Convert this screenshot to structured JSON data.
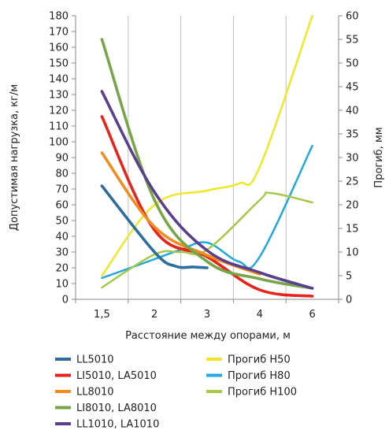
{
  "chart_data": {
    "type": "line",
    "x": [
      "1,5",
      "2",
      "3",
      "4",
      "6"
    ],
    "x_values": [
      1.5,
      2,
      3,
      4,
      6
    ],
    "xlabel": "Расстояние между опорами, м",
    "ylabel_left": "Допустимая нагрузка, кг/м",
    "ylabel_right": "Прогиб, мм",
    "ylim_left": [
      0,
      180
    ],
    "ylim_right": [
      0,
      60
    ],
    "yticks_left": [
      0,
      10,
      20,
      30,
      40,
      50,
      60,
      70,
      80,
      90,
      100,
      110,
      120,
      130,
      140,
      150,
      160,
      170,
      180
    ],
    "yticks_right": [
      0,
      5,
      10,
      15,
      20,
      25,
      30,
      35,
      40,
      45,
      50,
      55,
      60
    ],
    "xticks": [
      "1,5",
      "2",
      "3",
      "4",
      "6"
    ],
    "grid": "vertical",
    "legend_position": "bottom",
    "series": [
      {
        "name": "LL5010",
        "axis": "left",
        "color": "#2e6e9e",
        "points": [
          [
            1.5,
            72
          ],
          [
            2,
            30
          ],
          [
            2.4,
            21
          ],
          [
            2.75,
            20.5
          ],
          [
            3,
            20
          ]
        ]
      },
      {
        "name": "LI5010, LA5010",
        "axis": "left",
        "color": "#e8231c",
        "points": [
          [
            1.5,
            116
          ],
          [
            2,
            44
          ],
          [
            3,
            27
          ],
          [
            4,
            6
          ],
          [
            6,
            2
          ]
        ]
      },
      {
        "name": "LL8010",
        "axis": "left",
        "color": "#f28c1e",
        "points": [
          [
            1.5,
            93
          ],
          [
            2,
            46
          ],
          [
            3,
            28
          ],
          [
            4,
            16
          ]
        ]
      },
      {
        "name": "LI8010, LA8010",
        "axis": "left",
        "color": "#77a648",
        "points": [
          [
            1.5,
            165
          ],
          [
            2,
            63
          ],
          [
            3,
            24
          ],
          [
            4,
            13
          ],
          [
            6,
            7
          ]
        ]
      },
      {
        "name": "LL1010, LA1010",
        "axis": "left",
        "color": "#5b3f8f",
        "points": [
          [
            1.5,
            132
          ],
          [
            2,
            68
          ],
          [
            3,
            31
          ],
          [
            4,
            17
          ],
          [
            6,
            7
          ]
        ]
      },
      {
        "name": "Прогиб H50",
        "axis": "right",
        "color": "#f0e826",
        "points": [
          [
            1.5,
            5
          ],
          [
            2,
            20
          ],
          [
            3,
            23
          ],
          [
            3.6,
            24.5
          ],
          [
            4,
            28
          ],
          [
            6,
            60
          ]
        ]
      },
      {
        "name": "Прогиб H80",
        "axis": "right",
        "color": "#1fa9e0",
        "points": [
          [
            1.5,
            4.5
          ],
          [
            2,
            8.5
          ],
          [
            2.5,
            10.5
          ],
          [
            3,
            12
          ],
          [
            3.6,
            8
          ],
          [
            4,
            9
          ],
          [
            6,
            32.5
          ]
        ]
      },
      {
        "name": "Прогиб H100",
        "axis": "right",
        "color": "#a6c849",
        "points": [
          [
            1.5,
            2.5
          ],
          [
            2,
            9.5
          ],
          [
            2.5,
            10
          ],
          [
            3,
            10.5
          ],
          [
            4,
            21
          ],
          [
            4.4,
            22.5
          ],
          [
            6,
            20.5
          ]
        ]
      }
    ]
  }
}
